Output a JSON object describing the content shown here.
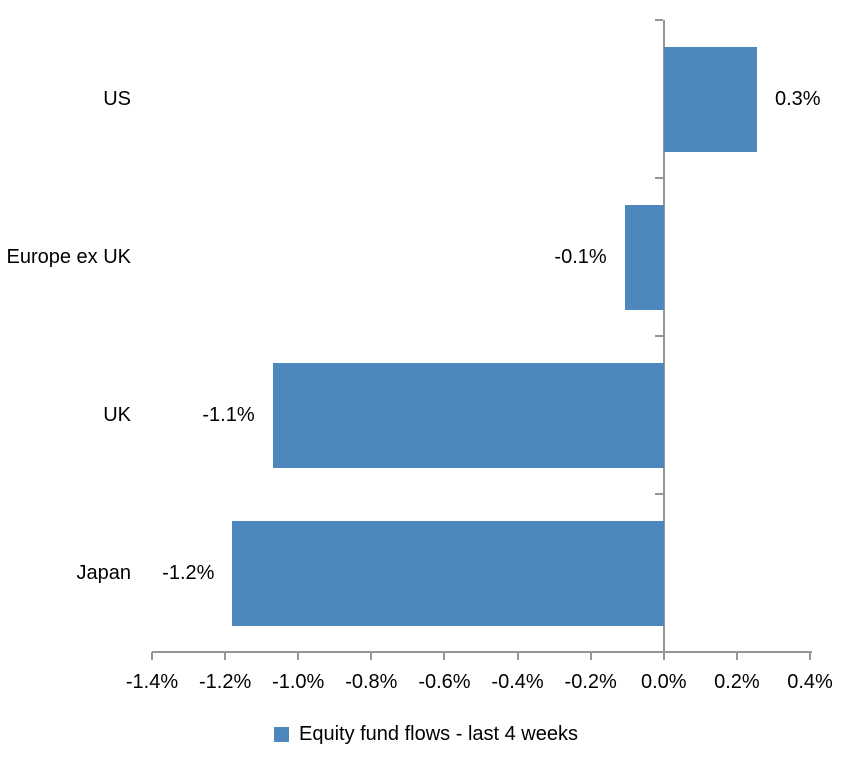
{
  "chart_data": {
    "type": "bar",
    "orientation": "horizontal",
    "title": "",
    "xlabel": "",
    "ylabel": "",
    "categories": [
      "US",
      "Europe ex UK",
      "UK",
      "Japan"
    ],
    "series": [
      {
        "name": "Equity fund flows - last 4 weeks",
        "values": [
          0.3,
          -0.1,
          -1.1,
          -1.2
        ],
        "data_labels": [
          "0.3%",
          "-0.1%",
          "-1.1%",
          "-1.2%"
        ],
        "bar_values_plotted": [
          0.255,
          -0.107,
          -1.07,
          -1.18
        ]
      }
    ],
    "xlim": [
      -1.4,
      0.4
    ],
    "x_tick_step": 0.2,
    "x_tick_labels": [
      "-1.4%",
      "-1.2%",
      "-1.0%",
      "-0.8%",
      "-0.6%",
      "-0.4%",
      "-0.2%",
      "0.0%",
      "0.2%",
      "0.4%"
    ],
    "grid": false,
    "legend": {
      "position": "bottom",
      "entries": [
        "Equity fund flows - last 4 weeks"
      ]
    },
    "colors": {
      "bar": "#4E86BE",
      "axis": "#969696",
      "text": "#000000",
      "background": "#FFFFFF"
    }
  }
}
